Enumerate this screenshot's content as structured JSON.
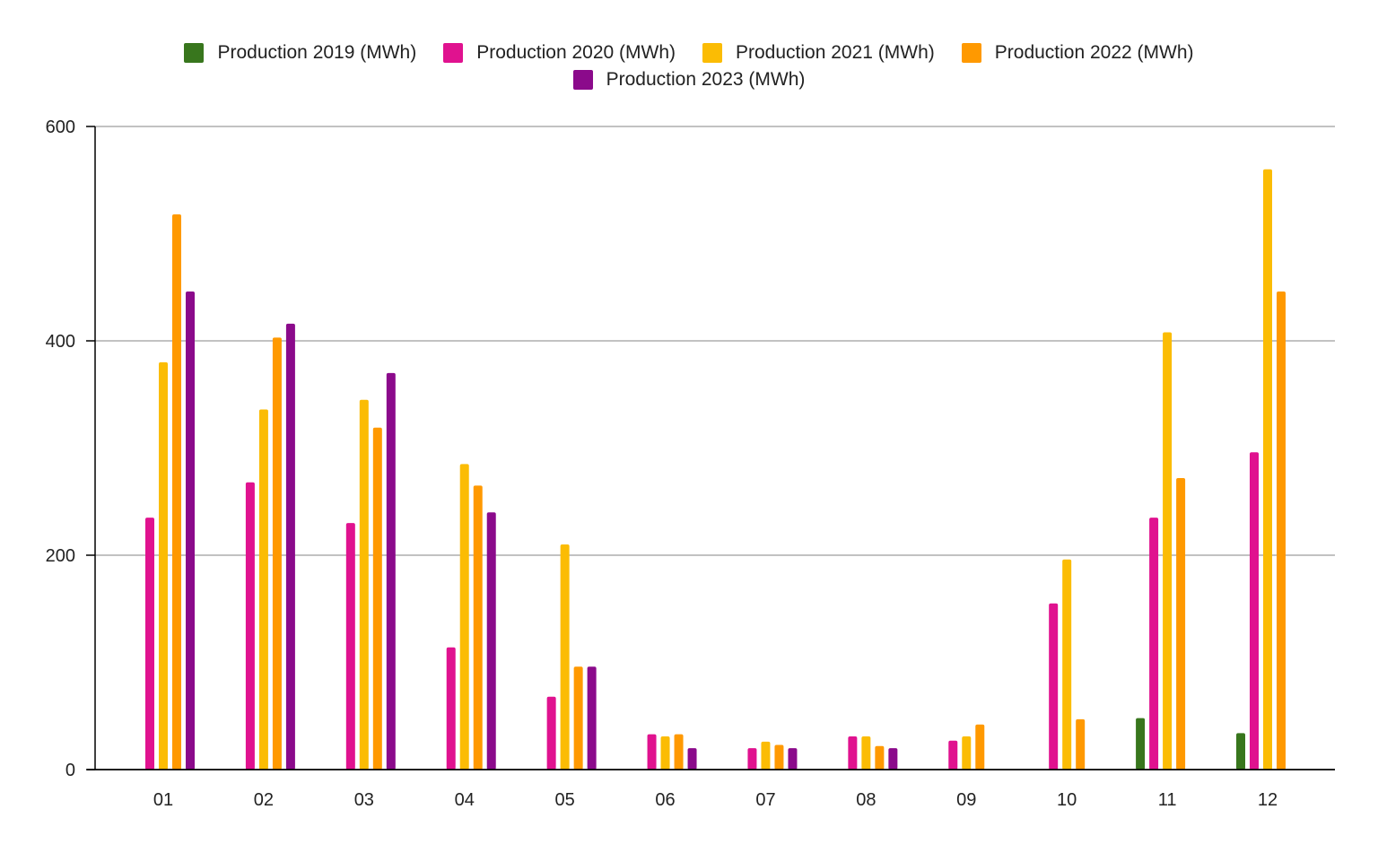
{
  "chart_data": {
    "type": "bar",
    "categories": [
      "01",
      "02",
      "03",
      "04",
      "05",
      "06",
      "07",
      "08",
      "09",
      "10",
      "11",
      "12"
    ],
    "series": [
      {
        "name": "Production 2019 (MWh)",
        "color": "#38761d",
        "values": [
          null,
          null,
          null,
          null,
          null,
          null,
          null,
          null,
          null,
          null,
          48,
          34
        ]
      },
      {
        "name": "Production 2020 (MWh)",
        "color": "#e0128f",
        "values": [
          235,
          268,
          230,
          114,
          68,
          33,
          20,
          31,
          27,
          155,
          235,
          296
        ]
      },
      {
        "name": "Production 2021 (MWh)",
        "color": "#fbbc04",
        "values": [
          380,
          336,
          345,
          285,
          210,
          31,
          26,
          31,
          31,
          196,
          408,
          560
        ]
      },
      {
        "name": "Production 2022 (MWh)",
        "color": "#ff9900",
        "values": [
          518,
          403,
          319,
          265,
          96,
          33,
          23,
          22,
          42,
          47,
          272,
          446
        ]
      },
      {
        "name": "Production 2023 (MWh)",
        "color": "#8b0a8b",
        "values": [
          446,
          416,
          370,
          240,
          96,
          20,
          20,
          20,
          null,
          null,
          null,
          null
        ]
      }
    ],
    "yticks": [
      "0",
      "200",
      "400",
      "600"
    ],
    "ylim": [
      0,
      600
    ],
    "grid": true,
    "legend": "top-center",
    "xlabel": "",
    "ylabel": ""
  }
}
